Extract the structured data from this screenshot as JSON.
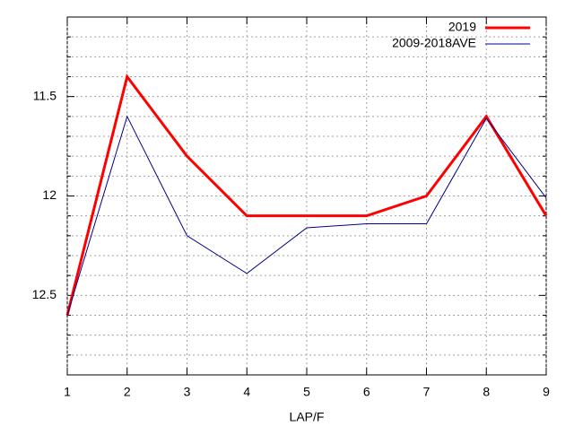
{
  "chart_data": {
    "type": "line",
    "xlabel": "LAP/F",
    "x": [
      1,
      2,
      3,
      4,
      5,
      6,
      7,
      8,
      9
    ],
    "series": [
      {
        "name": "2019",
        "color": "#ff0000",
        "width": 3,
        "values": [
          12.6,
          11.4,
          11.8,
          12.1,
          12.1,
          12.1,
          12.0,
          11.6,
          12.1
        ]
      },
      {
        "name": "2009-2018AVE",
        "color": "#00008b",
        "width": 1,
        "values": [
          12.6,
          11.6,
          12.2,
          12.39,
          12.16,
          12.14,
          12.14,
          11.61,
          12.01
        ]
      }
    ],
    "xlim": [
      1,
      9
    ],
    "xticks": [
      1,
      2,
      3,
      4,
      5,
      6,
      7,
      8,
      9
    ],
    "ylim": [
      11.1,
      12.9
    ],
    "yticks": [
      11.5,
      12,
      12.5
    ],
    "yminor_ticks": [
      11.2,
      11.3,
      11.4,
      11.6,
      11.7,
      11.8,
      11.9,
      12.1,
      12.2,
      12.3,
      12.4,
      12.6,
      12.7,
      12.8
    ],
    "y_reversed": true,
    "grid": true,
    "legend": "top-right"
  }
}
